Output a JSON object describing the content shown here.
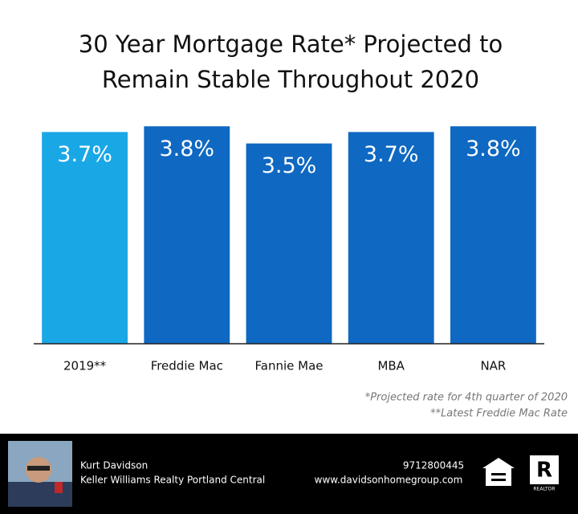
{
  "chart_data": {
    "type": "bar",
    "title": [
      "30 Year Mortgage Rate* Projected to",
      "Remain Stable Throughout 2020"
    ],
    "categories": [
      "2019**",
      "Freddie Mac",
      "Fannie Mae",
      "MBA",
      "NAR"
    ],
    "values": [
      3.7,
      3.8,
      3.5,
      3.7,
      3.8
    ],
    "value_labels": [
      "3.7%",
      "3.8%",
      "3.5%",
      "3.7%",
      "3.8%"
    ],
    "colors": [
      "#1aa7e6",
      "#0f68c2",
      "#0f68c2",
      "#0f68c2",
      "#0f68c2"
    ],
    "ylim": [
      0,
      4
    ],
    "footnotes": [
      "*Projected rate for 4th quarter of 2020",
      "**Latest Freddie Mac Rate"
    ]
  },
  "footer": {
    "name": "Kurt Davidson",
    "company": "Keller Williams Realty Portland Central",
    "phone": "9712800445",
    "website": "www.davidsonhomegroup.com",
    "realtor_logo": "REALTOR"
  }
}
